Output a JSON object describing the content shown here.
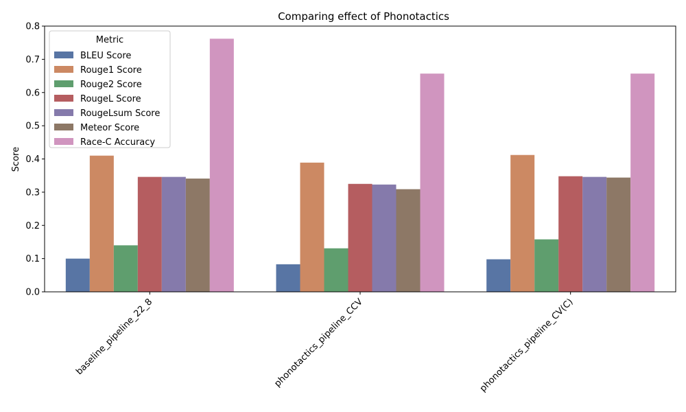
{
  "chart_data": {
    "type": "bar",
    "title": "Comparing effect of Phonotactics",
    "xlabel": "",
    "ylabel": "Score",
    "ylim": [
      0,
      0.8
    ],
    "yticks": [
      "0.0",
      "0.1",
      "0.2",
      "0.3",
      "0.4",
      "0.5",
      "0.6",
      "0.7",
      "0.8"
    ],
    "categories": [
      "baseline_pipeline_22_8",
      "phonotactics_pipeline_CCV",
      "phonotactics_pipeline_CV(C)"
    ],
    "legend": {
      "title": "Metric",
      "position": "top-left"
    },
    "grid": false,
    "series": [
      {
        "name": "BLEU Score",
        "color": "#5875a4",
        "values": [
          0.1,
          0.083,
          0.098
        ]
      },
      {
        "name": "Rouge1 Score",
        "color": "#cc8963",
        "values": [
          0.41,
          0.389,
          0.412
        ]
      },
      {
        "name": "Rouge2 Score",
        "color": "#5f9e6e",
        "values": [
          0.14,
          0.131,
          0.158
        ]
      },
      {
        "name": "RougeL Score",
        "color": "#b55d60",
        "values": [
          0.346,
          0.325,
          0.348
        ]
      },
      {
        "name": "RougeLsum Score",
        "color": "#857aab",
        "values": [
          0.346,
          0.323,
          0.346
        ]
      },
      {
        "name": "Meteor Score",
        "color": "#8d7866",
        "values": [
          0.341,
          0.309,
          0.344
        ]
      },
      {
        "name": "Race-C Accuracy",
        "color": "#d095bf",
        "values": [
          0.762,
          0.657,
          0.657
        ]
      }
    ]
  }
}
